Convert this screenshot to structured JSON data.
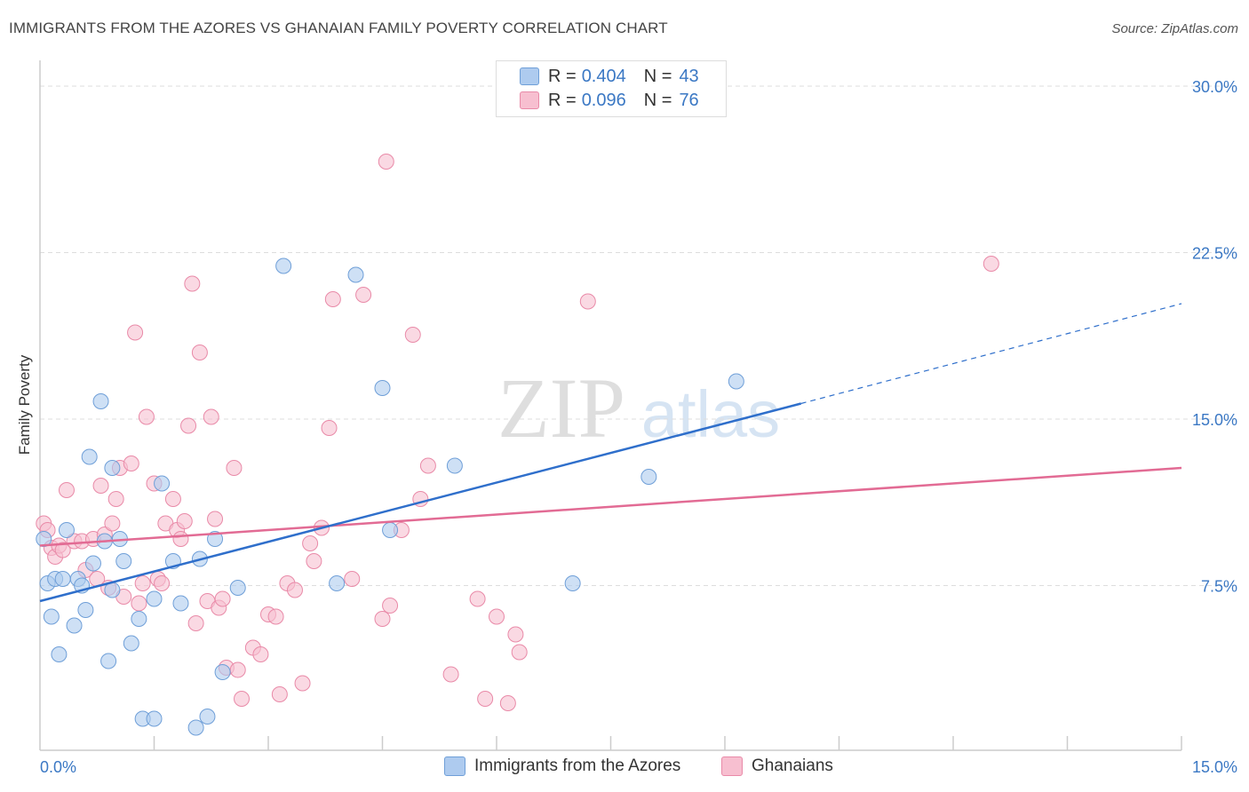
{
  "title": "IMMIGRANTS FROM THE AZORES VS GHANAIAN FAMILY POVERTY CORRELATION CHART",
  "source": "Source: ZipAtlas.com",
  "watermark": {
    "zip": "ZIP",
    "atlas": "atlas"
  },
  "legend": {
    "series1": {
      "r_label": "R =",
      "r_value": "0.404",
      "n_label": "N =",
      "n_value": "43"
    },
    "series2": {
      "r_label": "R =",
      "r_value": "0.096",
      "n_label": "N =",
      "n_value": "76"
    }
  },
  "bottom_legend": {
    "series1": "Immigrants from the Azores",
    "series2": "Ghanaians"
  },
  "colors": {
    "blue_fill": "#aecbef",
    "blue_stroke": "#6f9fd8",
    "blue_line": "#2f6fcb",
    "pink_fill": "#f7bfd0",
    "pink_stroke": "#e98aa8",
    "pink_line": "#e26b94",
    "tick_text": "#3b78c4",
    "grid": "#dddddd"
  },
  "chart_data": {
    "type": "scatter",
    "title": "IMMIGRANTS FROM THE AZORES VS GHANAIAN FAMILY POVERTY CORRELATION CHART",
    "xlabel": "",
    "ylabel": "Family Poverty",
    "xlim": [
      0,
      15
    ],
    "ylim": [
      0,
      30
    ],
    "x_ticks": [
      0,
      15
    ],
    "x_tick_labels": [
      "0.0%",
      "15.0%"
    ],
    "y_ticks": [
      7.5,
      15,
      22.5,
      30
    ],
    "y_tick_labels": [
      "7.5%",
      "15.0%",
      "22.5%",
      "30.0%"
    ],
    "grid": true,
    "legend_position": "top-center",
    "series": [
      {
        "name": "Immigrants from the Azores",
        "color": "#aecbef",
        "r": 0.404,
        "n": 43,
        "trend": {
          "x": [
            0,
            10.0,
            15.0
          ],
          "y": [
            6.8,
            15.7,
            20.2
          ],
          "solid_until": 10.0
        },
        "points": [
          [
            0.05,
            9.6
          ],
          [
            0.1,
            7.6
          ],
          [
            0.15,
            6.1
          ],
          [
            0.2,
            7.8
          ],
          [
            0.25,
            4.4
          ],
          [
            0.3,
            7.8
          ],
          [
            0.35,
            10.0
          ],
          [
            0.45,
            5.7
          ],
          [
            0.5,
            7.8
          ],
          [
            0.55,
            7.5
          ],
          [
            0.6,
            6.4
          ],
          [
            0.65,
            13.3
          ],
          [
            0.7,
            8.5
          ],
          [
            0.8,
            15.8
          ],
          [
            0.85,
            9.5
          ],
          [
            0.9,
            4.1
          ],
          [
            0.95,
            7.3
          ],
          [
            0.95,
            12.8
          ],
          [
            1.05,
            9.6
          ],
          [
            1.1,
            8.6
          ],
          [
            1.2,
            4.9
          ],
          [
            1.3,
            6.0
          ],
          [
            1.35,
            1.5
          ],
          [
            1.5,
            1.5
          ],
          [
            1.5,
            6.9
          ],
          [
            1.6,
            12.1
          ],
          [
            1.75,
            8.6
          ],
          [
            1.85,
            6.7
          ],
          [
            2.05,
            1.1
          ],
          [
            2.1,
            8.7
          ],
          [
            2.2,
            1.6
          ],
          [
            2.3,
            9.6
          ],
          [
            2.4,
            3.6
          ],
          [
            2.6,
            7.4
          ],
          [
            3.2,
            21.9
          ],
          [
            3.9,
            7.6
          ],
          [
            4.15,
            21.5
          ],
          [
            4.5,
            16.4
          ],
          [
            4.6,
            10.0
          ],
          [
            5.45,
            12.9
          ],
          [
            7.0,
            7.6
          ],
          [
            8.0,
            12.4
          ],
          [
            9.15,
            16.7
          ]
        ]
      },
      {
        "name": "Ghanaians",
        "color": "#f7bfd0",
        "r": 0.096,
        "n": 76,
        "trend": {
          "x": [
            0,
            15.0
          ],
          "y": [
            9.3,
            12.8
          ]
        },
        "points": [
          [
            0.05,
            10.3
          ],
          [
            0.1,
            10.0
          ],
          [
            0.15,
            9.2
          ],
          [
            0.2,
            8.8
          ],
          [
            0.25,
            9.3
          ],
          [
            0.3,
            9.1
          ],
          [
            0.35,
            11.8
          ],
          [
            0.45,
            9.5
          ],
          [
            0.55,
            9.5
          ],
          [
            0.6,
            8.2
          ],
          [
            0.7,
            9.6
          ],
          [
            0.75,
            7.8
          ],
          [
            0.8,
            12.0
          ],
          [
            0.85,
            9.8
          ],
          [
            0.9,
            7.4
          ],
          [
            0.95,
            10.3
          ],
          [
            1.0,
            11.4
          ],
          [
            1.05,
            12.8
          ],
          [
            1.1,
            7.0
          ],
          [
            1.2,
            13.0
          ],
          [
            1.25,
            18.9
          ],
          [
            1.3,
            6.7
          ],
          [
            1.35,
            7.6
          ],
          [
            1.4,
            15.1
          ],
          [
            1.5,
            12.1
          ],
          [
            1.55,
            7.8
          ],
          [
            1.6,
            7.6
          ],
          [
            1.65,
            10.3
          ],
          [
            1.75,
            11.4
          ],
          [
            1.8,
            10.0
          ],
          [
            1.85,
            9.6
          ],
          [
            1.9,
            10.4
          ],
          [
            1.95,
            14.7
          ],
          [
            2.0,
            21.1
          ],
          [
            2.05,
            5.8
          ],
          [
            2.1,
            18.0
          ],
          [
            2.2,
            6.8
          ],
          [
            2.25,
            15.1
          ],
          [
            2.3,
            10.5
          ],
          [
            2.35,
            6.5
          ],
          [
            2.4,
            6.9
          ],
          [
            2.45,
            3.8
          ],
          [
            2.55,
            12.8
          ],
          [
            2.6,
            3.7
          ],
          [
            2.65,
            2.4
          ],
          [
            2.8,
            4.7
          ],
          [
            2.9,
            4.4
          ],
          [
            3.0,
            6.2
          ],
          [
            3.1,
            6.1
          ],
          [
            3.15,
            2.6
          ],
          [
            3.25,
            7.6
          ],
          [
            3.35,
            7.3
          ],
          [
            3.45,
            3.1
          ],
          [
            3.55,
            9.4
          ],
          [
            3.6,
            8.6
          ],
          [
            3.7,
            10.1
          ],
          [
            3.8,
            14.6
          ],
          [
            3.85,
            20.4
          ],
          [
            4.1,
            7.8
          ],
          [
            4.25,
            20.6
          ],
          [
            4.55,
            26.6
          ],
          [
            4.5,
            6.0
          ],
          [
            4.6,
            6.6
          ],
          [
            4.75,
            10.0
          ],
          [
            4.9,
            18.8
          ],
          [
            5.0,
            11.4
          ],
          [
            5.1,
            12.9
          ],
          [
            5.4,
            3.5
          ],
          [
            5.75,
            6.9
          ],
          [
            5.85,
            2.4
          ],
          [
            6.0,
            6.1
          ],
          [
            6.15,
            2.2
          ],
          [
            6.25,
            5.3
          ],
          [
            6.3,
            4.5
          ],
          [
            7.2,
            20.3
          ],
          [
            12.5,
            22.0
          ]
        ]
      }
    ]
  }
}
